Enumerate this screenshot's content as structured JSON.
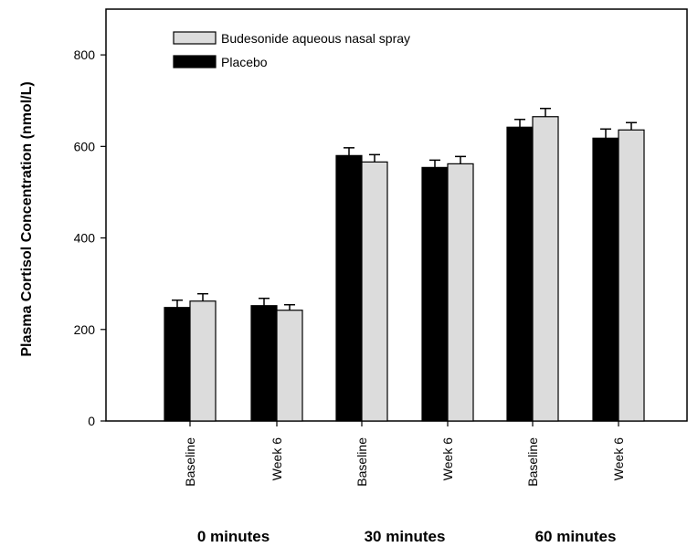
{
  "chart_data": {
    "type": "bar",
    "ylabel": "Plasma Cortisol Concentration (nmol/L)",
    "xlabel": "",
    "ylim": [
      0,
      900
    ],
    "yticks": [
      0,
      200,
      400,
      600,
      800
    ],
    "categories": [
      "Baseline",
      "Week 6",
      "Baseline",
      "Week 6",
      "Baseline",
      "Week 6"
    ],
    "groups": [
      {
        "label": "0 minutes",
        "categories": [
          0,
          1
        ]
      },
      {
        "label": "30 minutes",
        "categories": [
          2,
          3
        ]
      },
      {
        "label": "60 minutes",
        "categories": [
          4,
          5
        ]
      }
    ],
    "series": [
      {
        "name": "Placebo",
        "color": "#000000",
        "values": [
          248,
          252,
          580,
          554,
          642,
          618
        ],
        "errors": [
          16,
          16,
          17,
          16,
          17,
          20
        ]
      },
      {
        "name": "Budesonide aqueous nasal spray",
        "color": "#dcdcdc",
        "values": [
          262,
          242,
          566,
          562,
          665,
          636
        ],
        "errors": [
          16,
          12,
          16,
          16,
          18,
          16
        ]
      }
    ],
    "legend": {
      "placement": "top-left",
      "entries": [
        "Budesonide aqueous nasal spray",
        "Placebo"
      ]
    },
    "grid": false
  }
}
